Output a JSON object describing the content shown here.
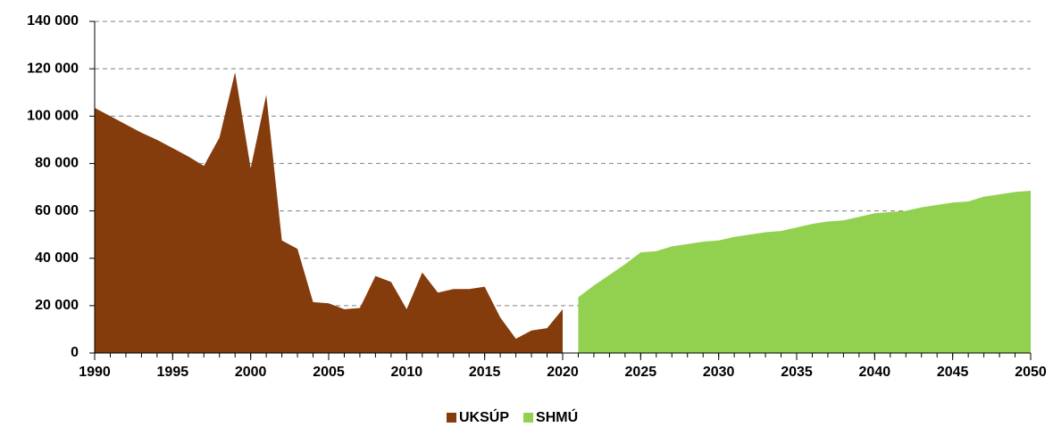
{
  "chart_data": {
    "type": "area",
    "x": [
      1990,
      1991,
      1992,
      1993,
      1994,
      1995,
      1996,
      1997,
      1998,
      1999,
      2000,
      2001,
      2002,
      2003,
      2004,
      2005,
      2006,
      2007,
      2008,
      2009,
      2010,
      2011,
      2012,
      2013,
      2014,
      2015,
      2016,
      2017,
      2018,
      2019,
      2020,
      2021,
      2022,
      2023,
      2024,
      2025,
      2026,
      2027,
      2028,
      2029,
      2030,
      2031,
      2032,
      2033,
      2034,
      2035,
      2036,
      2037,
      2038,
      2039,
      2040,
      2041,
      2042,
      2043,
      2044,
      2045,
      2046,
      2047,
      2048,
      2049,
      2050
    ],
    "series": [
      {
        "name": "UKSÚP",
        "color": "#843c0c",
        "values": [
          103500,
          100000,
          96500,
          93000,
          90000,
          86500,
          83000,
          79000,
          91000,
          118500,
          78000,
          109000,
          47500,
          44000,
          21500,
          21000,
          18500,
          19000,
          32500,
          30000,
          18500,
          34000,
          25500,
          27000,
          27000,
          28000,
          15000,
          6000,
          9500,
          10500,
          18500,
          null,
          null,
          null,
          null,
          null,
          null,
          null,
          null,
          null,
          null,
          null,
          null,
          null,
          null,
          null,
          null,
          null,
          null,
          null,
          null,
          null,
          null,
          null,
          null,
          null,
          null,
          null,
          null,
          null,
          null
        ]
      },
      {
        "name": "SHMÚ",
        "color": "#92d050",
        "values": [
          null,
          null,
          null,
          null,
          null,
          null,
          null,
          null,
          null,
          null,
          null,
          null,
          null,
          null,
          null,
          null,
          null,
          null,
          null,
          null,
          null,
          null,
          null,
          null,
          null,
          null,
          null,
          null,
          null,
          null,
          null,
          23500,
          28500,
          33000,
          37500,
          42500,
          43000,
          45000,
          46000,
          47000,
          47500,
          49000,
          50000,
          51000,
          51500,
          53000,
          54500,
          55500,
          56000,
          57500,
          59000,
          59500,
          60000,
          61500,
          62500,
          63500,
          64000,
          66000,
          67000,
          68000,
          68500
        ]
      }
    ],
    "xlim": [
      1990,
      2050
    ],
    "xticks": [
      1990,
      1995,
      2000,
      2005,
      2010,
      2015,
      2020,
      2025,
      2030,
      2035,
      2040,
      2045,
      2050
    ],
    "ylim": [
      0,
      140000
    ],
    "yticks": [
      {
        "value": 0,
        "label": "0"
      },
      {
        "value": 20000,
        "label": "20 000"
      },
      {
        "value": 40000,
        "label": "40 000"
      },
      {
        "value": 60000,
        "label": "60 000"
      },
      {
        "value": 80000,
        "label": "80 000"
      },
      {
        "value": 100000,
        "label": "100 000"
      },
      {
        "value": 120000,
        "label": "120 000"
      },
      {
        "value": 140000,
        "label": "140 000"
      }
    ],
    "grid": true,
    "legend": "bottom"
  }
}
